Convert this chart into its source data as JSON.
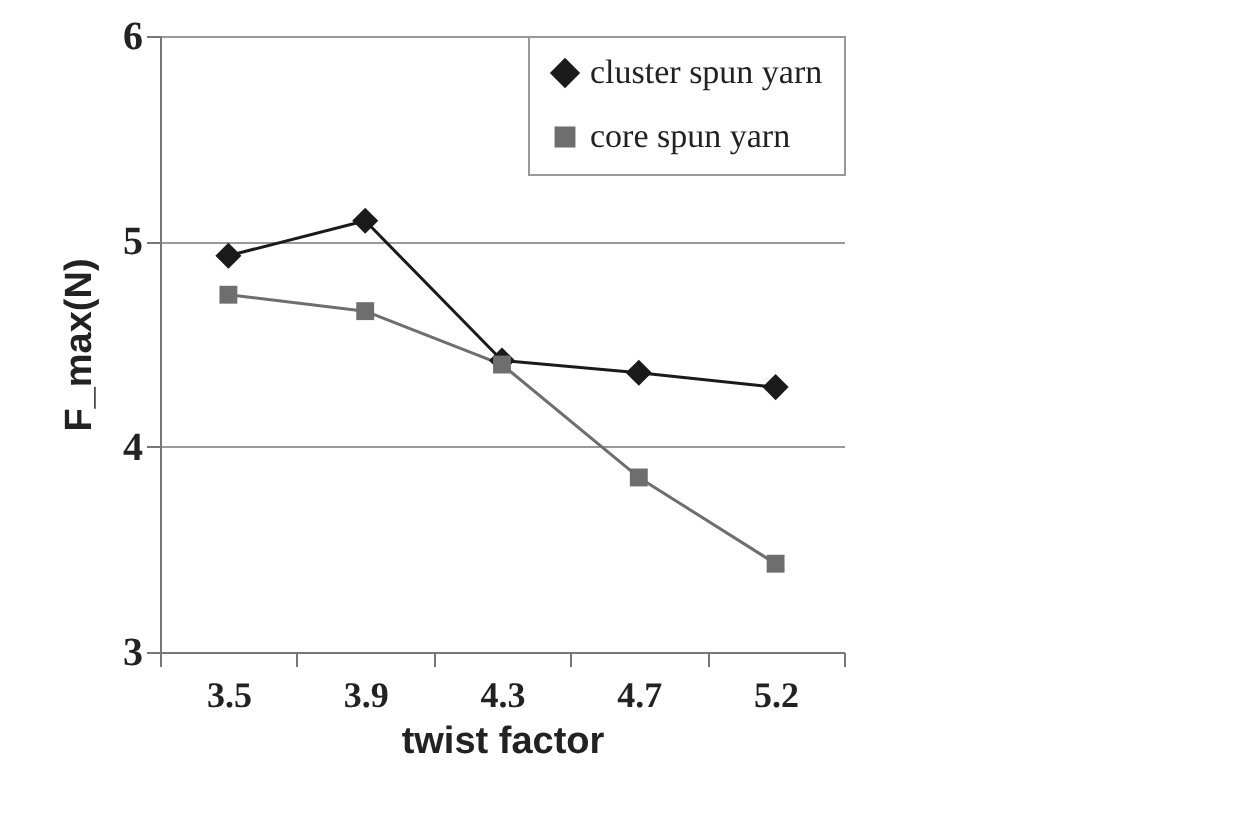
{
  "chart_data": {
    "type": "line",
    "xlabel": "twist factor",
    "ylabel": "F_max(N)",
    "categories": [
      "3.5",
      "3.9",
      "4.3",
      "4.7",
      "5.2"
    ],
    "series": [
      {
        "name": "cluster spun yarn",
        "color": "#1a1a1a",
        "marker": "diamond",
        "values": [
          4.93,
          5.1,
          4.42,
          4.36,
          4.29
        ]
      },
      {
        "name": "core spun yarn",
        "color": "#6e6e6e",
        "marker": "square",
        "values": [
          4.74,
          4.66,
          4.4,
          3.85,
          3.43
        ]
      }
    ],
    "ylim": [
      3,
      6
    ],
    "yticks": [
      3,
      4,
      5,
      6
    ],
    "grid": "y",
    "legend": "top right",
    "line_style": "solid"
  }
}
